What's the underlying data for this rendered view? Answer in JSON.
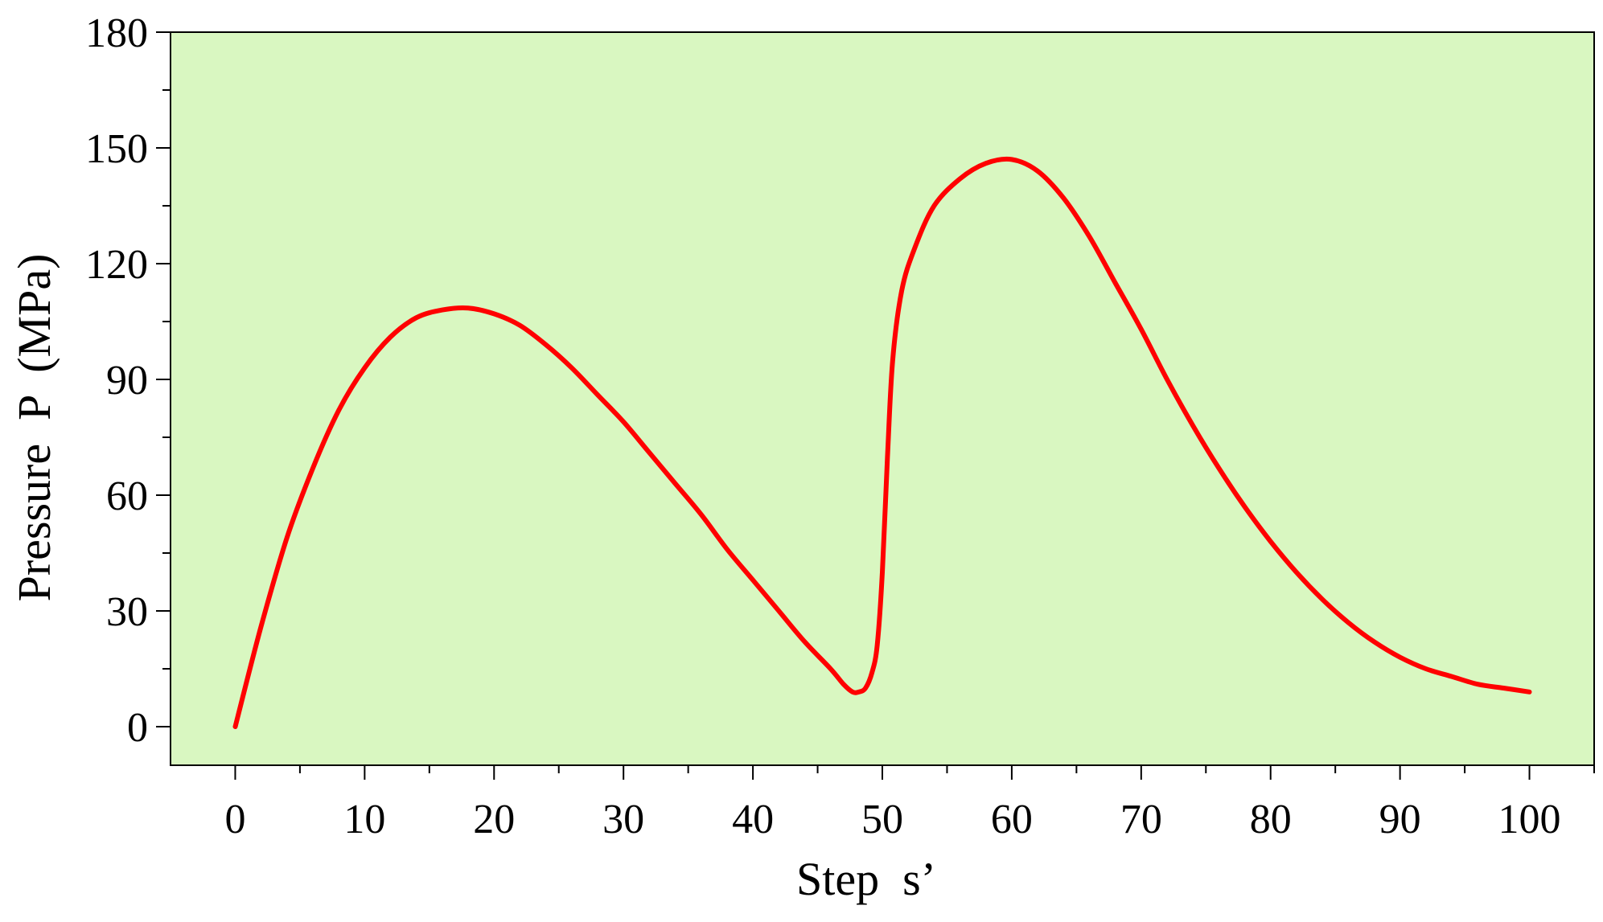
{
  "chart_data": {
    "type": "line",
    "title": "",
    "xlabel": "Step  s’",
    "ylabel": "Pressure  P  (MPa)",
    "xlim": [
      -5,
      105
    ],
    "ylim": [
      -10,
      180
    ],
    "x_ticks": [
      0,
      10,
      20,
      30,
      40,
      50,
      60,
      70,
      80,
      90,
      100
    ],
    "y_ticks": [
      0,
      30,
      60,
      90,
      120,
      150,
      180
    ],
    "grid": false,
    "legend": "none",
    "plot_background": "#d9f7c1",
    "series": [
      {
        "color": "#ff0000",
        "x": [
          0,
          2,
          4,
          6,
          8,
          10,
          12,
          14,
          16,
          18,
          20,
          22,
          24,
          26,
          28,
          30,
          32,
          34,
          36,
          38,
          40,
          42,
          44,
          46,
          47,
          47.7,
          48.2,
          48.7,
          49.2,
          49.6,
          50,
          50.4,
          50.8,
          51.5,
          52.5,
          54,
          56,
          58,
          60,
          62,
          64,
          66,
          68,
          70,
          72,
          74,
          76,
          78,
          80,
          82,
          84,
          86,
          88,
          90,
          92,
          94,
          96,
          98,
          100
        ],
        "y": [
          0,
          26,
          49,
          67,
          82,
          93,
          101,
          106,
          108,
          108.5,
          107,
          104,
          99,
          93,
          86,
          79,
          71,
          63,
          55,
          46,
          38,
          30,
          22,
          15,
          11,
          9,
          9,
          10,
          14,
          21,
          40,
          70,
          95,
          113,
          124,
          135,
          142,
          146,
          147,
          144,
          137,
          127,
          115,
          103,
          90,
          78,
          67,
          57,
          48,
          40,
          33,
          27,
          22,
          18,
          15,
          13,
          11,
          10,
          9
        ]
      }
    ]
  }
}
